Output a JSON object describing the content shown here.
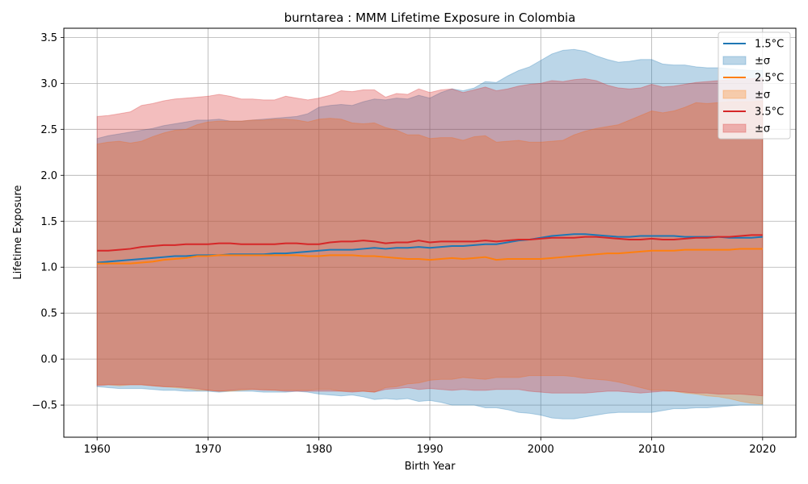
{
  "chart_data": {
    "type": "line",
    "title": "burntarea : MMM Lifetime Exposure in Colombia",
    "xlabel": "Birth Year",
    "ylabel": "Lifetime Exposure",
    "xlim": [
      1957,
      2023
    ],
    "ylim": [
      -0.85,
      3.6
    ],
    "xticks": [
      1960,
      1970,
      1980,
      1990,
      2000,
      2010,
      2020
    ],
    "yticks": [
      -0.5,
      0.0,
      0.5,
      1.0,
      1.5,
      2.0,
      2.5,
      3.0,
      3.5
    ],
    "ytick_labels": [
      "−0.5",
      "0.0",
      "0.5",
      "1.0",
      "1.5",
      "2.0",
      "2.5",
      "3.0",
      "3.5"
    ],
    "grid": true,
    "legend_position": "top-right",
    "x": [
      1960,
      1961,
      1962,
      1963,
      1964,
      1965,
      1966,
      1967,
      1968,
      1969,
      1970,
      1971,
      1972,
      1973,
      1974,
      1975,
      1976,
      1977,
      1978,
      1979,
      1980,
      1981,
      1982,
      1983,
      1984,
      1985,
      1986,
      1987,
      1988,
      1989,
      1990,
      1991,
      1992,
      1993,
      1994,
      1995,
      1996,
      1997,
      1998,
      1999,
      2000,
      2001,
      2002,
      2003,
      2004,
      2005,
      2006,
      2007,
      2008,
      2009,
      2010,
      2011,
      2012,
      2013,
      2014,
      2015,
      2016,
      2017,
      2018,
      2019,
      2020
    ],
    "series": [
      {
        "name": "1.5°C",
        "band_label": "±σ",
        "color": "#1f77b4",
        "mean": [
          1.05,
          1.06,
          1.07,
          1.08,
          1.09,
          1.1,
          1.11,
          1.12,
          1.12,
          1.13,
          1.13,
          1.13,
          1.14,
          1.14,
          1.14,
          1.14,
          1.15,
          1.15,
          1.16,
          1.17,
          1.18,
          1.19,
          1.19,
          1.19,
          1.2,
          1.21,
          1.2,
          1.21,
          1.21,
          1.22,
          1.21,
          1.22,
          1.23,
          1.23,
          1.24,
          1.25,
          1.25,
          1.27,
          1.29,
          1.3,
          1.32,
          1.34,
          1.35,
          1.36,
          1.36,
          1.35,
          1.34,
          1.33,
          1.33,
          1.34,
          1.34,
          1.34,
          1.34,
          1.33,
          1.33,
          1.33,
          1.33,
          1.32,
          1.32,
          1.32,
          1.33
        ],
        "upper": [
          2.4,
          2.43,
          2.45,
          2.47,
          2.49,
          2.51,
          2.54,
          2.56,
          2.58,
          2.6,
          2.6,
          2.61,
          2.59,
          2.59,
          2.6,
          2.61,
          2.62,
          2.63,
          2.64,
          2.67,
          2.74,
          2.76,
          2.77,
          2.76,
          2.8,
          2.83,
          2.82,
          2.84,
          2.83,
          2.87,
          2.84,
          2.9,
          2.94,
          2.92,
          2.95,
          3.02,
          3.01,
          3.08,
          3.14,
          3.18,
          3.25,
          3.32,
          3.36,
          3.37,
          3.35,
          3.3,
          3.26,
          3.23,
          3.24,
          3.26,
          3.26,
          3.21,
          3.2,
          3.2,
          3.18,
          3.17,
          3.17,
          3.16,
          3.15,
          3.14,
          3.14
        ],
        "lower": [
          -0.3,
          -0.31,
          -0.32,
          -0.32,
          -0.32,
          -0.33,
          -0.34,
          -0.34,
          -0.35,
          -0.35,
          -0.35,
          -0.36,
          -0.35,
          -0.35,
          -0.35,
          -0.36,
          -0.36,
          -0.36,
          -0.35,
          -0.36,
          -0.38,
          -0.39,
          -0.4,
          -0.39,
          -0.41,
          -0.44,
          -0.43,
          -0.44,
          -0.43,
          -0.46,
          -0.45,
          -0.47,
          -0.5,
          -0.5,
          -0.5,
          -0.53,
          -0.53,
          -0.55,
          -0.58,
          -0.59,
          -0.61,
          -0.64,
          -0.65,
          -0.65,
          -0.63,
          -0.61,
          -0.59,
          -0.58,
          -0.58,
          -0.58,
          -0.58,
          -0.56,
          -0.54,
          -0.54,
          -0.53,
          -0.53,
          -0.52,
          -0.51,
          -0.5,
          -0.5,
          -0.5
        ]
      },
      {
        "name": "2.5°C",
        "band_label": "±σ",
        "color": "#ff7f0e",
        "mean": [
          1.04,
          1.04,
          1.04,
          1.04,
          1.05,
          1.06,
          1.08,
          1.09,
          1.1,
          1.12,
          1.12,
          1.13,
          1.13,
          1.13,
          1.13,
          1.13,
          1.13,
          1.13,
          1.13,
          1.12,
          1.12,
          1.13,
          1.13,
          1.13,
          1.12,
          1.12,
          1.11,
          1.1,
          1.09,
          1.09,
          1.08,
          1.09,
          1.1,
          1.09,
          1.1,
          1.11,
          1.08,
          1.09,
          1.09,
          1.09,
          1.09,
          1.1,
          1.11,
          1.12,
          1.13,
          1.14,
          1.15,
          1.15,
          1.16,
          1.17,
          1.18,
          1.18,
          1.18,
          1.19,
          1.19,
          1.19,
          1.19,
          1.19,
          1.2,
          1.2,
          1.2
        ],
        "upper": [
          2.34,
          2.36,
          2.37,
          2.35,
          2.37,
          2.42,
          2.46,
          2.49,
          2.5,
          2.55,
          2.58,
          2.59,
          2.59,
          2.59,
          2.6,
          2.6,
          2.61,
          2.61,
          2.6,
          2.58,
          2.61,
          2.62,
          2.61,
          2.57,
          2.56,
          2.57,
          2.52,
          2.49,
          2.44,
          2.44,
          2.4,
          2.41,
          2.41,
          2.38,
          2.42,
          2.43,
          2.36,
          2.37,
          2.38,
          2.36,
          2.36,
          2.37,
          2.38,
          2.44,
          2.48,
          2.51,
          2.53,
          2.55,
          2.6,
          2.65,
          2.7,
          2.68,
          2.7,
          2.74,
          2.79,
          2.78,
          2.79,
          2.8,
          2.8,
          2.8,
          2.81
        ],
        "lower": [
          -0.28,
          -0.28,
          -0.29,
          -0.28,
          -0.28,
          -0.29,
          -0.3,
          -0.31,
          -0.32,
          -0.34,
          -0.34,
          -0.35,
          -0.35,
          -0.34,
          -0.33,
          -0.33,
          -0.34,
          -0.34,
          -0.34,
          -0.34,
          -0.33,
          -0.33,
          -0.35,
          -0.35,
          -0.35,
          -0.36,
          -0.31,
          -0.3,
          -0.27,
          -0.26,
          -0.23,
          -0.22,
          -0.22,
          -0.2,
          -0.21,
          -0.22,
          -0.2,
          -0.2,
          -0.2,
          -0.18,
          -0.18,
          -0.18,
          -0.18,
          -0.19,
          -0.21,
          -0.22,
          -0.23,
          -0.25,
          -0.28,
          -0.31,
          -0.34,
          -0.34,
          -0.35,
          -0.37,
          -0.38,
          -0.4,
          -0.41,
          -0.43,
          -0.46,
          -0.48,
          -0.49
        ]
      },
      {
        "name": "3.5°C",
        "band_label": "±σ",
        "color": "#d62728",
        "mean": [
          1.18,
          1.18,
          1.19,
          1.2,
          1.22,
          1.23,
          1.24,
          1.24,
          1.25,
          1.25,
          1.25,
          1.26,
          1.26,
          1.25,
          1.25,
          1.25,
          1.25,
          1.26,
          1.26,
          1.25,
          1.25,
          1.27,
          1.28,
          1.28,
          1.29,
          1.28,
          1.26,
          1.27,
          1.27,
          1.29,
          1.27,
          1.28,
          1.28,
          1.28,
          1.28,
          1.29,
          1.28,
          1.29,
          1.3,
          1.3,
          1.31,
          1.32,
          1.32,
          1.32,
          1.33,
          1.33,
          1.32,
          1.31,
          1.3,
          1.3,
          1.31,
          1.3,
          1.3,
          1.31,
          1.32,
          1.32,
          1.33,
          1.33,
          1.34,
          1.35,
          1.35
        ],
        "upper": [
          2.64,
          2.65,
          2.67,
          2.69,
          2.76,
          2.78,
          2.81,
          2.83,
          2.84,
          2.85,
          2.86,
          2.88,
          2.86,
          2.83,
          2.83,
          2.82,
          2.82,
          2.86,
          2.84,
          2.82,
          2.84,
          2.87,
          2.92,
          2.91,
          2.93,
          2.93,
          2.85,
          2.89,
          2.88,
          2.94,
          2.9,
          2.93,
          2.94,
          2.9,
          2.93,
          2.96,
          2.92,
          2.94,
          2.97,
          2.99,
          3.0,
          3.03,
          3.02,
          3.04,
          3.05,
          3.03,
          2.98,
          2.95,
          2.94,
          2.95,
          2.99,
          2.96,
          2.97,
          2.99,
          3.01,
          3.02,
          3.03,
          3.04,
          3.05,
          3.05,
          3.06
        ],
        "lower": [
          -0.29,
          -0.28,
          -0.28,
          -0.28,
          -0.28,
          -0.29,
          -0.3,
          -0.3,
          -0.31,
          -0.32,
          -0.34,
          -0.35,
          -0.34,
          -0.33,
          -0.33,
          -0.34,
          -0.34,
          -0.35,
          -0.35,
          -0.35,
          -0.35,
          -0.35,
          -0.35,
          -0.36,
          -0.35,
          -0.36,
          -0.33,
          -0.32,
          -0.31,
          -0.33,
          -0.32,
          -0.33,
          -0.34,
          -0.33,
          -0.34,
          -0.34,
          -0.33,
          -0.33,
          -0.33,
          -0.35,
          -0.36,
          -0.37,
          -0.37,
          -0.37,
          -0.37,
          -0.36,
          -0.35,
          -0.35,
          -0.36,
          -0.37,
          -0.36,
          -0.35,
          -0.35,
          -0.36,
          -0.37,
          -0.37,
          -0.38,
          -0.38,
          -0.38,
          -0.39,
          -0.4
        ]
      }
    ]
  }
}
